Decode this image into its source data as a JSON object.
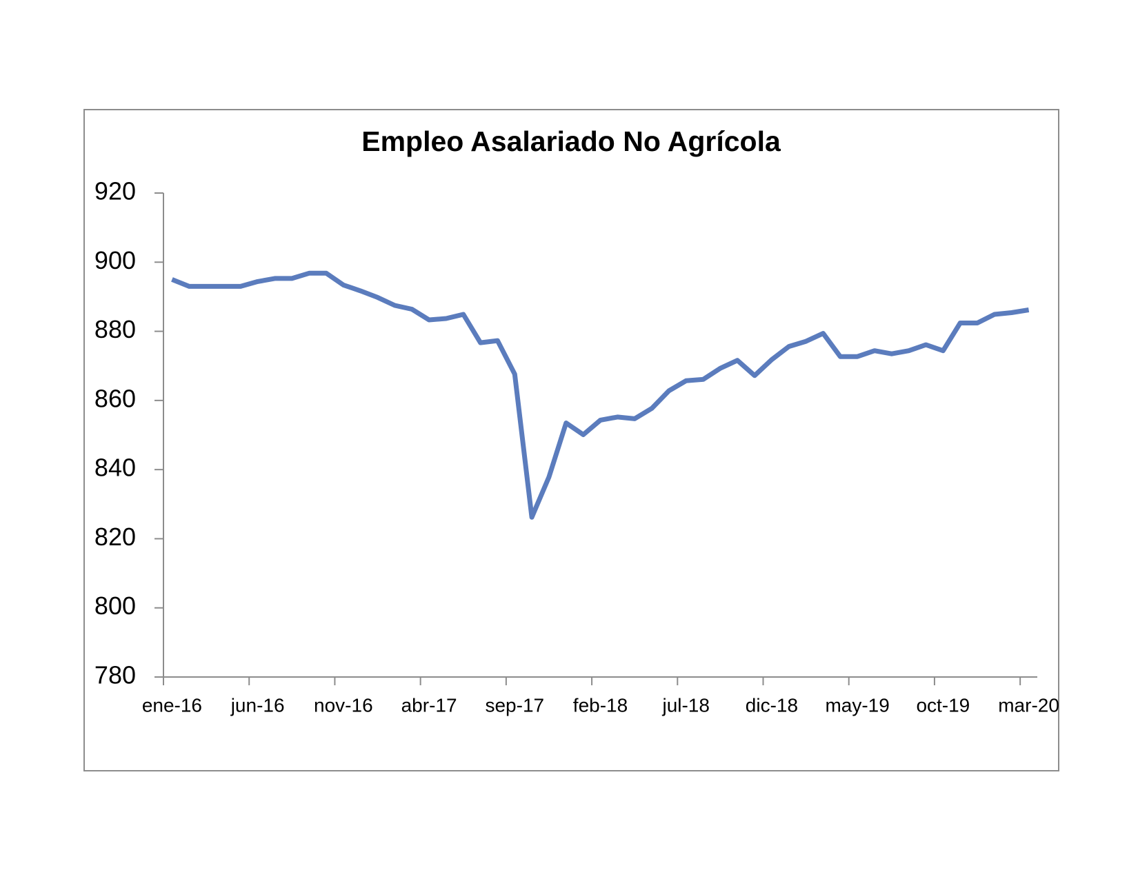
{
  "chart_data": {
    "type": "line",
    "title": "Empleo Asalariado No Agrícola",
    "categories": [
      "ene-16",
      null,
      null,
      null,
      null,
      "jun-16",
      null,
      null,
      null,
      null,
      "nov-16",
      null,
      null,
      null,
      null,
      "abr-17",
      null,
      null,
      null,
      null,
      "sep-17",
      null,
      null,
      null,
      null,
      "feb-18",
      null,
      null,
      null,
      null,
      "jul-18",
      null,
      null,
      null,
      null,
      "dic-18",
      null,
      null,
      null,
      null,
      "may-19",
      null,
      null,
      null,
      null,
      "oct-19",
      null,
      null,
      null,
      null,
      "mar-20"
    ],
    "series": [
      {
        "color": "#5b7cbd",
        "values": [
          895,
          893,
          893,
          893,
          893,
          894.4,
          895.3,
          895.3,
          896.8,
          896.8,
          893.4,
          891.7,
          889.8,
          887.5,
          886.4,
          883.3,
          883.7,
          884.9,
          876.7,
          877.3,
          867.6,
          826.2,
          837.9,
          853.5,
          850.1,
          854.3,
          855.2,
          854.7,
          857.7,
          862.8,
          865.7,
          866.1,
          869.3,
          871.6,
          867.2,
          871.8,
          875.6,
          877.1,
          879.4,
          872.7,
          872.7,
          874.4,
          873.5,
          874.4,
          876.1,
          874.4,
          882.4,
          882.4,
          884.9,
          885.4,
          886.2
        ]
      }
    ],
    "ylim": [
      780,
      920
    ],
    "yticks": [
      780,
      800,
      820,
      840,
      860,
      880,
      900,
      920
    ],
    "grid": false
  }
}
